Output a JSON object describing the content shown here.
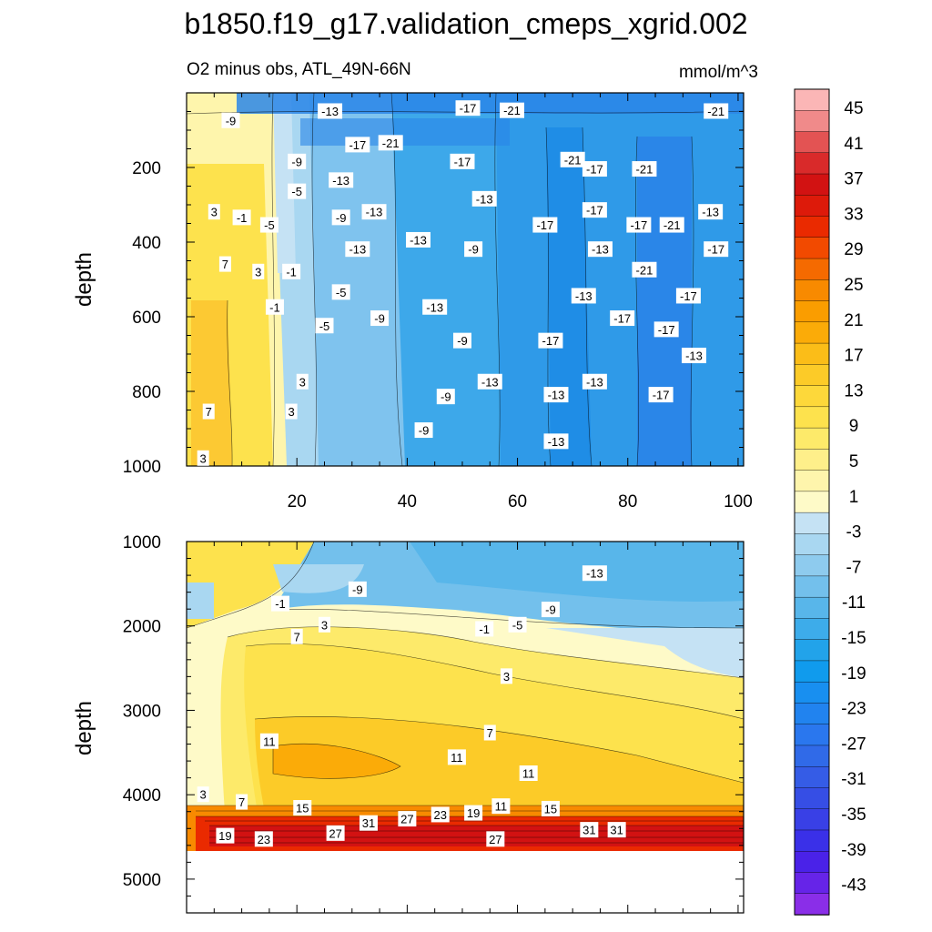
{
  "chart_data": {
    "type": "contour",
    "title": "b1850.f19_g17.validation_cmeps_xgrid.002",
    "subtitle_left": "O2 minus obs, ATL_49N-66N",
    "subtitle_right": "mmol/m^3",
    "colorbar": {
      "tick_labels": [
        "45",
        "41",
        "37",
        "33",
        "29",
        "25",
        "21",
        "17",
        "13",
        "9",
        "5",
        "1",
        "-3",
        "-7",
        "-11",
        "-15",
        "-19",
        "-23",
        "-27",
        "-31",
        "-35",
        "-39",
        "-43"
      ],
      "colors": [
        "#fbb6b6",
        "#f08a8a",
        "#e35353",
        "#d92a2a",
        "#d21212",
        "#dd1a0a",
        "#ea2a00",
        "#f24a00",
        "#f56a00",
        "#f88a00",
        "#fa9d00",
        "#fbab08",
        "#fbbd18",
        "#fccb28",
        "#fdd83a",
        "#fde24d",
        "#fdea6a",
        "#feef8a",
        "#fef5ac",
        "#fefac8",
        "#c5e2f4",
        "#a9d7f1",
        "#8ecbee",
        "#73c0ec",
        "#58b6ea",
        "#3dacea",
        "#22a3ea",
        "#109bed",
        "#188ff0",
        "#2183ef",
        "#2a77ee",
        "#306ae8",
        "#355ce6",
        "#364ee5",
        "#3940e6",
        "#3a30e8",
        "#4a22e8",
        "#6624e8",
        "#8a2ee8"
      ]
    },
    "panels": [
      {
        "name": "upper",
        "ylabel": "depth",
        "xlim": [
          0,
          101
        ],
        "ylim": [
          1000,
          0
        ],
        "x_ticks": [
          "20",
          "40",
          "60",
          "80",
          "100"
        ],
        "y_ticks": [
          "200",
          "400",
          "600",
          "800",
          "1000"
        ],
        "contour_labels": [
          {
            "text": "-9",
            "x": 8,
            "y": 75
          },
          {
            "text": "-13",
            "x": 26,
            "y": 50
          },
          {
            "text": "-17",
            "x": 51,
            "y": 42
          },
          {
            "text": "-21",
            "x": 59,
            "y": 48
          },
          {
            "text": "-21",
            "x": 96,
            "y": 50
          },
          {
            "text": "-17",
            "x": 31,
            "y": 140
          },
          {
            "text": "-21",
            "x": 37,
            "y": 135
          },
          {
            "text": "-9",
            "x": 20,
            "y": 185
          },
          {
            "text": "-17",
            "x": 50,
            "y": 185
          },
          {
            "text": "-21",
            "x": 70,
            "y": 180
          },
          {
            "text": "-17",
            "x": 74,
            "y": 205
          },
          {
            "text": "-21",
            "x": 83,
            "y": 205
          },
          {
            "text": "-13",
            "x": 28,
            "y": 235
          },
          {
            "text": "-5",
            "x": 20,
            "y": 265
          },
          {
            "text": "-13",
            "x": 54,
            "y": 285
          },
          {
            "text": "3",
            "x": 5,
            "y": 320
          },
          {
            "text": "-1",
            "x": 10,
            "y": 335
          },
          {
            "text": "-9",
            "x": 28,
            "y": 335
          },
          {
            "text": "-13",
            "x": 34,
            "y": 320
          },
          {
            "text": "-17",
            "x": 65,
            "y": 355
          },
          {
            "text": "-17",
            "x": 74,
            "y": 315
          },
          {
            "text": "-17",
            "x": 82,
            "y": 355
          },
          {
            "text": "-21",
            "x": 88,
            "y": 355
          },
          {
            "text": "-13",
            "x": 95,
            "y": 320
          },
          {
            "text": "-5",
            "x": 15,
            "y": 355
          },
          {
            "text": "-13",
            "x": 42,
            "y": 395
          },
          {
            "text": "-13",
            "x": 31,
            "y": 420
          },
          {
            "text": "-9",
            "x": 52,
            "y": 420
          },
          {
            "text": "-13",
            "x": 75,
            "y": 420
          },
          {
            "text": "-17",
            "x": 96,
            "y": 420
          },
          {
            "text": "7",
            "x": 7,
            "y": 460
          },
          {
            "text": "3",
            "x": 13,
            "y": 480
          },
          {
            "text": "-1",
            "x": 19,
            "y": 480
          },
          {
            "text": "-21",
            "x": 83,
            "y": 475
          },
          {
            "text": "-5",
            "x": 28,
            "y": 535
          },
          {
            "text": "-13",
            "x": 72,
            "y": 545
          },
          {
            "text": "-17",
            "x": 91,
            "y": 545
          },
          {
            "text": "-13",
            "x": 45,
            "y": 575
          },
          {
            "text": "-1",
            "x": 16,
            "y": 575
          },
          {
            "text": "-9",
            "x": 35,
            "y": 605
          },
          {
            "text": "-17",
            "x": 79,
            "y": 605
          },
          {
            "text": "-5",
            "x": 25,
            "y": 625
          },
          {
            "text": "-17",
            "x": 87,
            "y": 635
          },
          {
            "text": "-9",
            "x": 50,
            "y": 665
          },
          {
            "text": "-17",
            "x": 66,
            "y": 665
          },
          {
            "text": "-13",
            "x": 92,
            "y": 705
          },
          {
            "text": "3",
            "x": 21,
            "y": 775
          },
          {
            "text": "-13",
            "x": 55,
            "y": 775
          },
          {
            "text": "-13",
            "x": 74,
            "y": 775
          },
          {
            "text": "-13",
            "x": 67,
            "y": 810
          },
          {
            "text": "-17",
            "x": 86,
            "y": 810
          },
          {
            "text": "-9",
            "x": 47,
            "y": 815
          },
          {
            "text": "7",
            "x": 4,
            "y": 855
          },
          {
            "text": "3",
            "x": 19,
            "y": 855
          },
          {
            "text": "-9",
            "x": 43,
            "y": 905
          },
          {
            "text": "-13",
            "x": 67,
            "y": 935
          },
          {
            "text": "3",
            "x": 3,
            "y": 980
          }
        ]
      },
      {
        "name": "lower",
        "ylabel": "depth",
        "xlim": [
          0,
          101
        ],
        "ylim": [
          5400,
          1000
        ],
        "y_ticks": [
          "1000",
          "2000",
          "3000",
          "4000",
          "5000"
        ],
        "contour_labels": [
          {
            "text": "-13",
            "x": 74,
            "y": 1380
          },
          {
            "text": "-9",
            "x": 31,
            "y": 1570
          },
          {
            "text": "-1",
            "x": 17,
            "y": 1740
          },
          {
            "text": "-9",
            "x": 66,
            "y": 1810
          },
          {
            "text": "3",
            "x": 25,
            "y": 1990
          },
          {
            "text": "-5",
            "x": 60,
            "y": 1990
          },
          {
            "text": "-1",
            "x": 54,
            "y": 2040
          },
          {
            "text": "7",
            "x": 20,
            "y": 2130
          },
          {
            "text": "3",
            "x": 58,
            "y": 2600
          },
          {
            "text": "7",
            "x": 55,
            "y": 3270
          },
          {
            "text": "11",
            "x": 15,
            "y": 3370
          },
          {
            "text": "11",
            "x": 49,
            "y": 3560
          },
          {
            "text": "11",
            "x": 62,
            "y": 3750
          },
          {
            "text": "3",
            "x": 3,
            "y": 4000
          },
          {
            "text": "7",
            "x": 10,
            "y": 4090
          },
          {
            "text": "15",
            "x": 21,
            "y": 4160
          },
          {
            "text": "11",
            "x": 57,
            "y": 4140
          },
          {
            "text": "15",
            "x": 66,
            "y": 4170
          },
          {
            "text": "19",
            "x": 52,
            "y": 4220
          },
          {
            "text": "23",
            "x": 46,
            "y": 4240
          },
          {
            "text": "27",
            "x": 40,
            "y": 4290
          },
          {
            "text": "31",
            "x": 33,
            "y": 4340
          },
          {
            "text": "31",
            "x": 73,
            "y": 4420
          },
          {
            "text": "31",
            "x": 78,
            "y": 4420
          },
          {
            "text": "19",
            "x": 7,
            "y": 4490
          },
          {
            "text": "27",
            "x": 27,
            "y": 4460
          },
          {
            "text": "23",
            "x": 14,
            "y": 4530
          },
          {
            "text": "27",
            "x": 56,
            "y": 4530
          }
        ]
      }
    ]
  }
}
